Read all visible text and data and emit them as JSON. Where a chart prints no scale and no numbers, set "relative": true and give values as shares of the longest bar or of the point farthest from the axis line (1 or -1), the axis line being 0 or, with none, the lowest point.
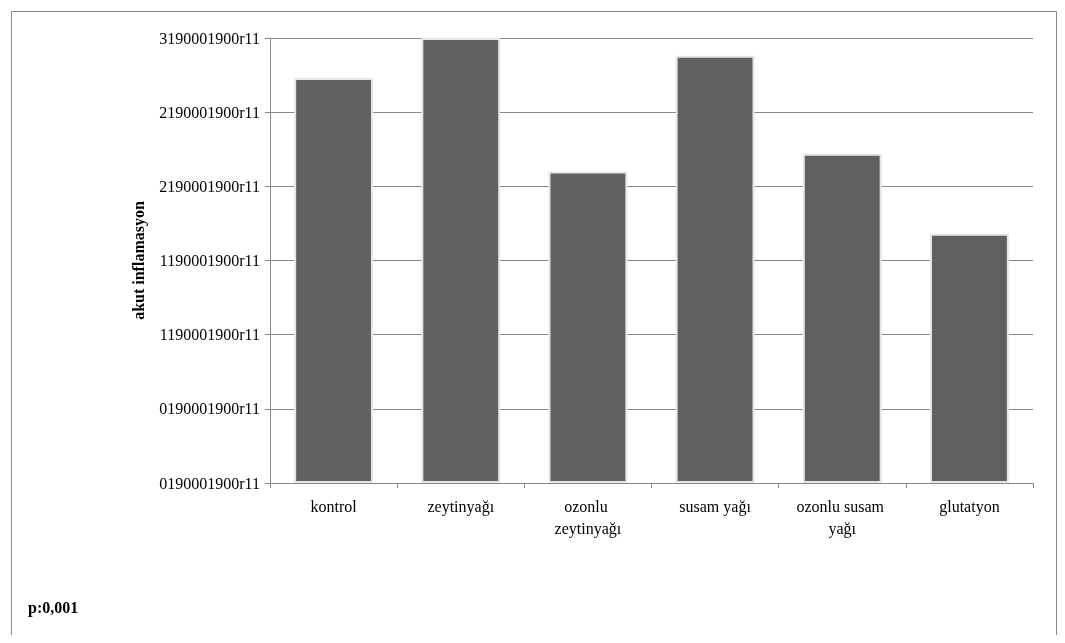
{
  "chart_data": {
    "type": "bar",
    "relative": true,
    "categories": [
      "kontrol",
      "zeytinyağı",
      "ozonlu zeytinyağı",
      "susam yağı",
      "ozonlu susam yağı",
      "glutatyon"
    ],
    "values": [
      0.91,
      1,
      0.7,
      0.96,
      0.74,
      0.56
    ],
    "color": "#606060",
    "grid": "y",
    "annotations": [
      "0190001900r11",
      "0190001900r11",
      "1190001900r11",
      "1190001900r11",
      "2190001900r11",
      "2190001900r11",
      "3190001900r11",
      "akut inflamasyon",
      "p:0,001"
    ]
  }
}
